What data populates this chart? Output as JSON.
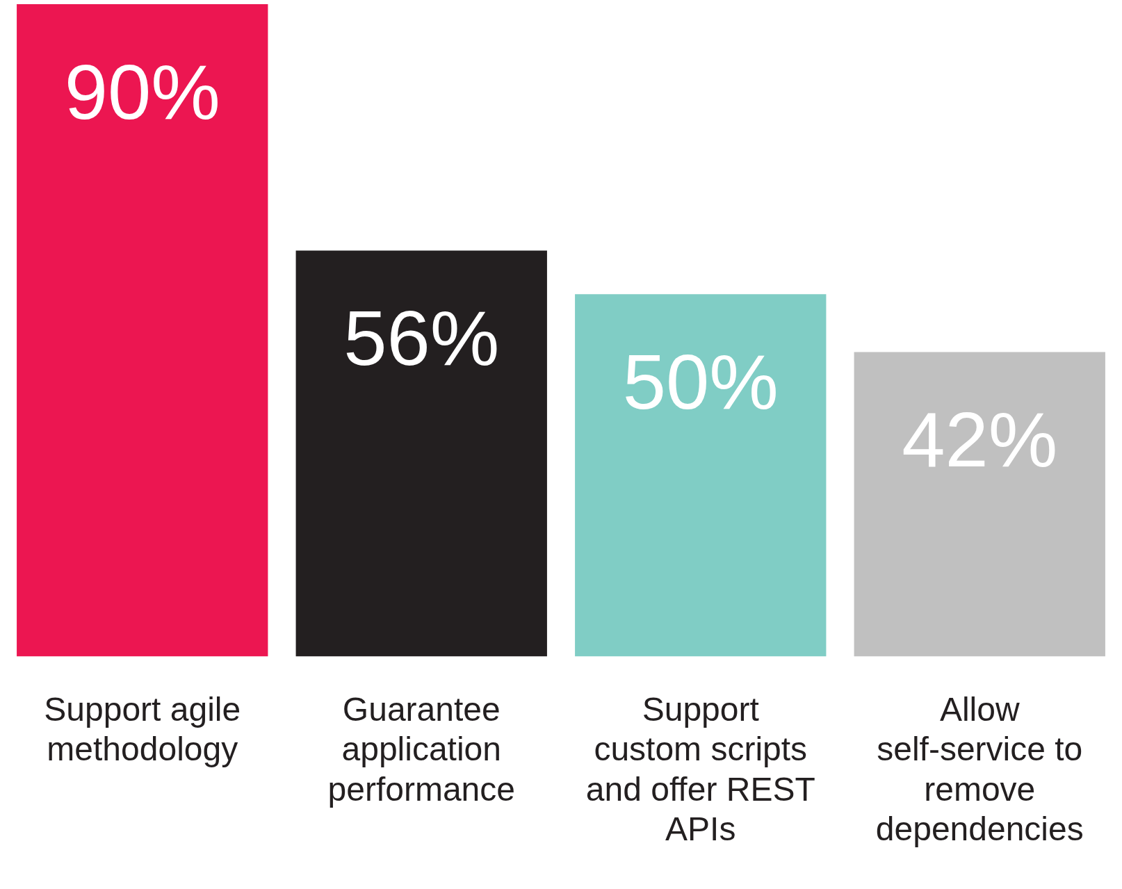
{
  "chart_data": {
    "type": "bar",
    "categories": [
      "Support agile methodology",
      "Guarantee application performance",
      "Support custom scripts and offer REST APIs",
      "Allow self-service to remove dependencies"
    ],
    "values": [
      90,
      56,
      50,
      42
    ],
    "colors": [
      "#ec1651",
      "#231f20",
      "#80cdc5",
      "#c0c0c0"
    ],
    "ylim": [
      0,
      90
    ],
    "data_labels": true,
    "value_labels": [
      "90%",
      "56%",
      "50%",
      "42%"
    ],
    "tick_labels": "x",
    "grid": false,
    "legend": false
  }
}
